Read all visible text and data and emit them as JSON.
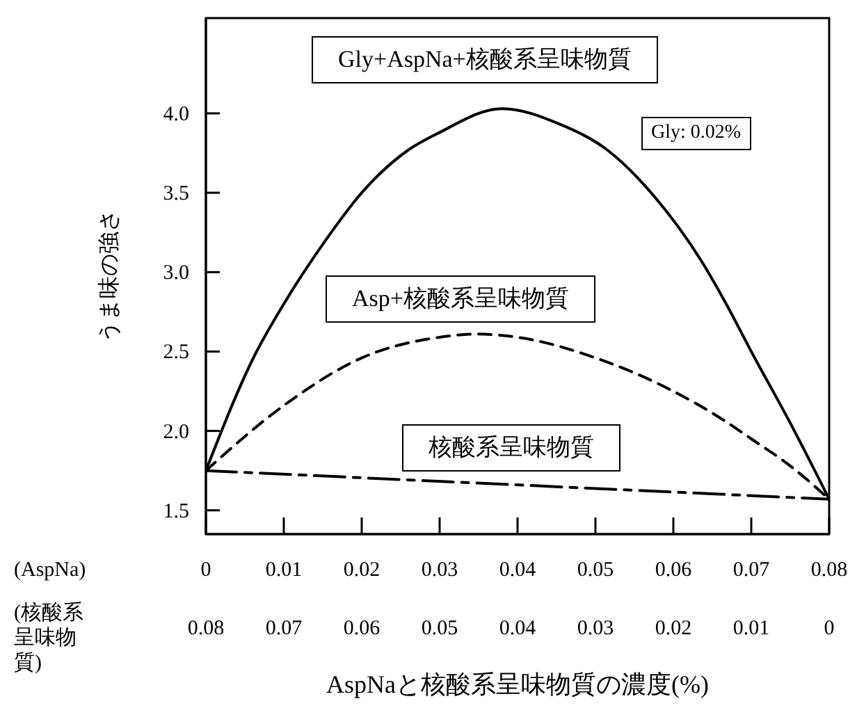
{
  "chart_data": {
    "type": "line",
    "xlabel": "AspNaと核酸系呈味物質の濃度(%)",
    "ylabel": "うま味の強さ",
    "xlim": [
      0,
      0.08
    ],
    "xticks": [
      0,
      0.01,
      0.02,
      0.03,
      0.04,
      0.05,
      0.06,
      0.07,
      0.08
    ],
    "x2lim": [
      0.08,
      0
    ],
    "x2ticks": [
      0.08,
      0.07,
      0.06,
      0.05,
      0.04,
      0.03,
      0.02,
      0.01,
      0
    ],
    "ylim": [
      1.35,
      4.6
    ],
    "yticks": [
      1.5,
      {
        "value": 2,
        "label": "2.0"
      },
      2.5,
      {
        "value": 3,
        "label": "3.0"
      },
      3.5,
      {
        "value": 4,
        "label": "4.0"
      }
    ],
    "annotations": [
      "Gly: 0.02%",
      "(AspNa)",
      "(核酸系呈味物質)"
    ],
    "series": [
      {
        "name": "Gly+AspNa+核酸系呈味物質",
        "color": "#000000",
        "line_style": "solid",
        "x": [
          0,
          0.0063,
          0.01,
          0.0155,
          0.02,
          0.026,
          0.03,
          0.038,
          0.0455,
          0.0515,
          0.0575,
          0.0636,
          0.067,
          0.07,
          0.075,
          0.08
        ],
        "values": [
          1.75,
          2.48,
          2.8,
          3.21,
          3.5,
          3.77,
          3.88,
          4.03,
          3.93,
          3.77,
          3.48,
          3.07,
          2.78,
          2.5,
          2.05,
          1.57
        ]
      },
      {
        "name": "Asp+核酸系呈味物質",
        "color": "#000000",
        "line_style": "dashed",
        "x": [
          0,
          0.01,
          0.02,
          0.03,
          0.0346,
          0.04,
          0.05,
          0.06,
          0.0667,
          0.07,
          0.075,
          0.08
        ],
        "values": [
          1.75,
          2.16,
          2.46,
          2.59,
          2.61,
          2.59,
          2.46,
          2.25,
          2.06,
          1.95,
          1.78,
          1.57
        ]
      },
      {
        "name": "核酸系呈味物質",
        "color": "#000000",
        "line_style": "dashdot",
        "x": [
          0,
          0.08
        ],
        "values": [
          1.75,
          1.57
        ]
      }
    ]
  }
}
